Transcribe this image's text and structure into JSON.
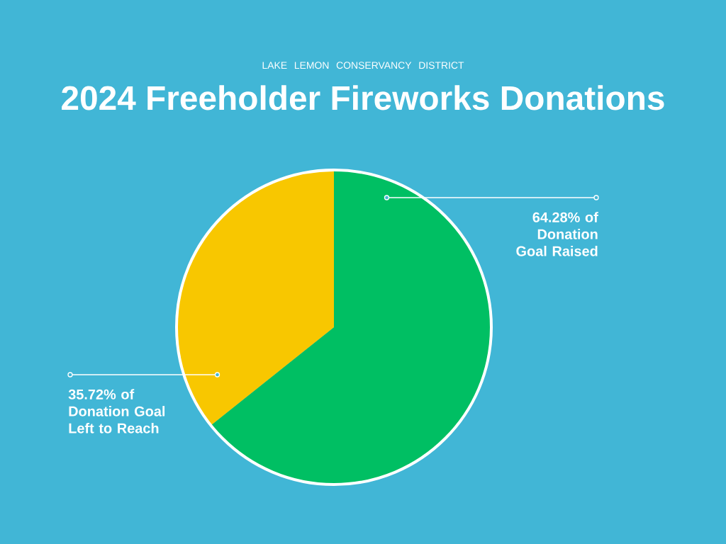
{
  "chart_data": {
    "type": "pie",
    "subtitle": "LAKE LEMON CONSERVANCY DISTRICT",
    "title": "2024 Freeholder Fireworks Donations",
    "categories": [
      "64.28% of Donation Goal Raised",
      "35.72% of Donation Goal Left to Reach"
    ],
    "values": [
      64.28,
      35.72
    ],
    "colors": [
      "#00bf63",
      "#f8c700"
    ]
  }
}
